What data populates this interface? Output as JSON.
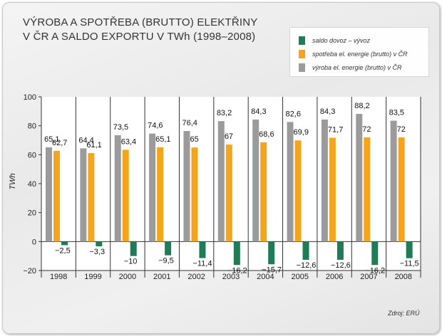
{
  "title_lines": [
    "VÝROBA A SPOTŘEBA (BRUTTO) ELEKTŘINY",
    "V ČR A SALDO EXPORTU V TWh (1998–2008)"
  ],
  "source": "Zdroj: ERÚ",
  "chart_data": {
    "type": "bar",
    "title": "VÝROBA A SPOTŘEBA (BRUTTO) ELEKTŘINY V ČR A SALDO EXPORTU V TWh (1998–2008)",
    "xlabel": "",
    "ylabel": "TWh",
    "ylim": [
      -20,
      100
    ],
    "yticks": [
      "100",
      "80",
      "60",
      "40",
      "20",
      "0",
      "−20"
    ],
    "grid": false,
    "legend_position": "top-right",
    "categories": [
      "1998",
      "1999",
      "2000",
      "2001",
      "2002",
      "2003",
      "2004",
      "2005",
      "2006",
      "2007",
      "2008"
    ],
    "series": [
      {
        "name": "saldo dovoz – vývoz",
        "color": "#1f7d55",
        "values": [
          -2.5,
          -3.3,
          -10,
          -9.5,
          -11.4,
          -16.2,
          -15.7,
          -12.6,
          -12.6,
          -16.2,
          -11.5
        ],
        "labels": [
          "−2,5",
          "−3,3",
          "−10",
          "−9,5",
          "−11,4",
          "−16,2",
          "−15,7",
          "−12,6",
          "−12,6",
          "−16,2",
          "−11,5"
        ]
      },
      {
        "name": "spotřeba el. energie (brutto) v ČR",
        "color": "#f5a51c",
        "values": [
          62.7,
          61.1,
          63.4,
          65.1,
          65,
          67,
          68.6,
          69.9,
          71.7,
          72,
          72
        ],
        "labels": [
          "62,7",
          "61,1",
          "63,4",
          "65,1",
          "65",
          "67",
          "68,6",
          "69,9",
          "71,7",
          "72",
          "72"
        ]
      },
      {
        "name": "výroba el. energie (brutto) v ČR",
        "color": "#9b9b9b",
        "values": [
          65.1,
          64.4,
          73.5,
          74.6,
          76.4,
          83.2,
          84.3,
          82.6,
          84.3,
          88.2,
          83.5
        ],
        "labels": [
          "65,1",
          "64,4",
          "73,5",
          "74,6",
          "76,4",
          "83,2",
          "84,3",
          "82,6",
          "84,3",
          "88,2",
          "83,5"
        ]
      }
    ]
  }
}
